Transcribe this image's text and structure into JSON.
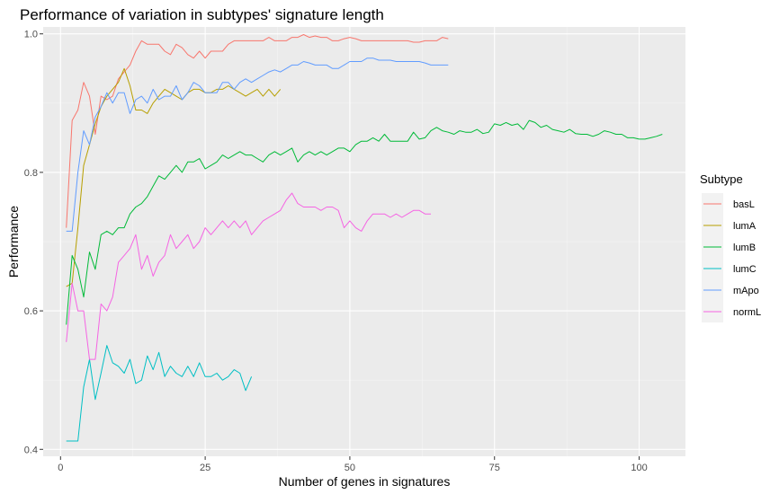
{
  "chart_data": {
    "type": "line",
    "title": "Performance of variation in subtypes' signature length",
    "xlabel": "Number of genes in signatures",
    "ylabel": "Performance",
    "xlim": [
      -3,
      108
    ],
    "ylim": [
      0.39,
      1.01
    ],
    "x_ticks": [
      0,
      25,
      50,
      75,
      100
    ],
    "x_tick_labels": [
      "0",
      "25",
      "50",
      "75",
      "100"
    ],
    "y_ticks": [
      0.4,
      0.6,
      0.8,
      1.0
    ],
    "y_tick_labels": [
      "0.4",
      "0.6",
      "0.8",
      "1.0"
    ],
    "grid": true,
    "legend": {
      "title": "Subtype",
      "position": "right"
    },
    "series": [
      {
        "name": "basL",
        "color": "#F8766D",
        "x": [
          1,
          2,
          3,
          4,
          5,
          6,
          7,
          8,
          9,
          10,
          11,
          12,
          13,
          14,
          15,
          16,
          17,
          18,
          19,
          20,
          21,
          22,
          23,
          24,
          25,
          26,
          27,
          28,
          29,
          30,
          31,
          32,
          33,
          34,
          35,
          36,
          37,
          38,
          39,
          40,
          41,
          42,
          43,
          44,
          45,
          46,
          47,
          48,
          49,
          50,
          51,
          52,
          53,
          54,
          55,
          56,
          57,
          58,
          59,
          60,
          61,
          62,
          63,
          64,
          65,
          66,
          67
        ],
        "y": [
          0.72,
          0.875,
          0.89,
          0.93,
          0.91,
          0.855,
          0.91,
          0.905,
          0.91,
          0.935,
          0.945,
          0.955,
          0.975,
          0.99,
          0.985,
          0.985,
          0.985,
          0.975,
          0.97,
          0.985,
          0.98,
          0.97,
          0.965,
          0.975,
          0.965,
          0.975,
          0.975,
          0.975,
          0.985,
          0.99,
          0.99,
          0.99,
          0.99,
          0.99,
          0.99,
          0.995,
          0.99,
          0.99,
          0.99,
          0.995,
          0.995,
          0.999,
          0.995,
          0.997,
          0.995,
          0.995,
          0.99,
          0.99,
          0.993,
          0.995,
          0.993,
          0.99,
          0.99,
          0.99,
          0.99,
          0.99,
          0.99,
          0.99,
          0.99,
          0.99,
          0.988,
          0.988,
          0.99,
          0.99,
          0.99,
          0.995,
          0.993
        ]
      },
      {
        "name": "lumA",
        "color": "#B79F00",
        "x": [
          1,
          2,
          3,
          4,
          5,
          6,
          7,
          8,
          9,
          10,
          11,
          12,
          13,
          14,
          15,
          16,
          17,
          18,
          19,
          20,
          21,
          22,
          23,
          24,
          25,
          26,
          27,
          28,
          29,
          30,
          31,
          32,
          33,
          34,
          35,
          36,
          37,
          38
        ],
        "y": [
          0.635,
          0.64,
          0.72,
          0.81,
          0.84,
          0.87,
          0.895,
          0.91,
          0.92,
          0.93,
          0.95,
          0.925,
          0.89,
          0.89,
          0.885,
          0.9,
          0.91,
          0.92,
          0.915,
          0.91,
          0.905,
          0.915,
          0.92,
          0.92,
          0.915,
          0.915,
          0.92,
          0.92,
          0.925,
          0.92,
          0.915,
          0.91,
          0.915,
          0.92,
          0.91,
          0.92,
          0.91,
          0.92
        ]
      },
      {
        "name": "lumB",
        "color": "#00BA38",
        "x": [
          1,
          2,
          3,
          4,
          5,
          6,
          7,
          8,
          9,
          10,
          11,
          12,
          13,
          14,
          15,
          16,
          17,
          18,
          19,
          20,
          21,
          22,
          23,
          24,
          25,
          26,
          27,
          28,
          29,
          30,
          31,
          32,
          33,
          34,
          35,
          36,
          37,
          38,
          39,
          40,
          41,
          42,
          43,
          44,
          45,
          46,
          47,
          48,
          49,
          50,
          51,
          52,
          53,
          54,
          55,
          56,
          57,
          58,
          59,
          60,
          61,
          62,
          63,
          64,
          65,
          66,
          67,
          68,
          69,
          70,
          71,
          72,
          73,
          74,
          75,
          76,
          77,
          78,
          79,
          80,
          81,
          82,
          83,
          84,
          85,
          86,
          87,
          88,
          89,
          90,
          91,
          92,
          93,
          94,
          95,
          96,
          97,
          98,
          99,
          100,
          101,
          102,
          103,
          104
        ],
        "y": [
          0.58,
          0.68,
          0.66,
          0.62,
          0.685,
          0.66,
          0.71,
          0.715,
          0.71,
          0.72,
          0.72,
          0.74,
          0.75,
          0.755,
          0.765,
          0.78,
          0.795,
          0.79,
          0.8,
          0.81,
          0.8,
          0.815,
          0.815,
          0.82,
          0.805,
          0.81,
          0.815,
          0.825,
          0.82,
          0.825,
          0.83,
          0.825,
          0.825,
          0.82,
          0.815,
          0.825,
          0.83,
          0.825,
          0.83,
          0.835,
          0.815,
          0.825,
          0.83,
          0.825,
          0.83,
          0.825,
          0.83,
          0.835,
          0.835,
          0.83,
          0.84,
          0.845,
          0.845,
          0.85,
          0.845,
          0.855,
          0.845,
          0.845,
          0.845,
          0.845,
          0.858,
          0.848,
          0.85,
          0.86,
          0.865,
          0.86,
          0.858,
          0.855,
          0.86,
          0.858,
          0.858,
          0.862,
          0.856,
          0.858,
          0.87,
          0.868,
          0.872,
          0.868,
          0.87,
          0.862,
          0.875,
          0.872,
          0.865,
          0.868,
          0.862,
          0.86,
          0.858,
          0.862,
          0.856,
          0.855,
          0.855,
          0.852,
          0.855,
          0.86,
          0.858,
          0.855,
          0.855,
          0.85,
          0.85,
          0.848,
          0.848,
          0.85,
          0.852,
          0.855
        ]
      },
      {
        "name": "lumC",
        "color": "#00BFC4",
        "x": [
          1,
          2,
          3,
          4,
          5,
          6,
          7,
          8,
          9,
          10,
          11,
          12,
          13,
          14,
          15,
          16,
          17,
          18,
          19,
          20,
          21,
          22,
          23,
          24,
          25,
          26,
          27,
          28,
          29,
          30,
          31,
          32,
          33
        ],
        "y": [
          0.412,
          0.412,
          0.412,
          0.49,
          0.53,
          0.472,
          0.51,
          0.55,
          0.525,
          0.52,
          0.51,
          0.53,
          0.495,
          0.5,
          0.535,
          0.515,
          0.54,
          0.505,
          0.52,
          0.51,
          0.505,
          0.52,
          0.505,
          0.525,
          0.505,
          0.505,
          0.51,
          0.5,
          0.505,
          0.515,
          0.51,
          0.485,
          0.505
        ]
      },
      {
        "name": "mApo",
        "color": "#619CFF",
        "x": [
          1,
          2,
          3,
          4,
          5,
          6,
          7,
          8,
          9,
          10,
          11,
          12,
          13,
          14,
          15,
          16,
          17,
          18,
          19,
          20,
          21,
          22,
          23,
          24,
          25,
          26,
          27,
          28,
          29,
          30,
          31,
          32,
          33,
          34,
          35,
          36,
          37,
          38,
          39,
          40,
          41,
          42,
          43,
          44,
          45,
          46,
          47,
          48,
          49,
          50,
          51,
          52,
          53,
          54,
          55,
          56,
          57,
          58,
          59,
          60,
          61,
          62,
          63,
          64,
          65,
          66,
          67
        ],
        "y": [
          0.715,
          0.715,
          0.8,
          0.86,
          0.84,
          0.88,
          0.895,
          0.915,
          0.9,
          0.915,
          0.915,
          0.885,
          0.905,
          0.91,
          0.9,
          0.92,
          0.905,
          0.91,
          0.91,
          0.925,
          0.905,
          0.915,
          0.93,
          0.925,
          0.915,
          0.915,
          0.915,
          0.93,
          0.93,
          0.92,
          0.93,
          0.935,
          0.93,
          0.935,
          0.94,
          0.945,
          0.948,
          0.945,
          0.95,
          0.955,
          0.955,
          0.96,
          0.958,
          0.955,
          0.955,
          0.955,
          0.95,
          0.95,
          0.955,
          0.96,
          0.96,
          0.96,
          0.965,
          0.965,
          0.962,
          0.962,
          0.962,
          0.96,
          0.96,
          0.96,
          0.96,
          0.96,
          0.958,
          0.955,
          0.955,
          0.955,
          0.955
        ]
      },
      {
        "name": "normL",
        "color": "#F564E3",
        "x": [
          1,
          2,
          3,
          4,
          5,
          6,
          7,
          8,
          9,
          10,
          11,
          12,
          13,
          14,
          15,
          16,
          17,
          18,
          19,
          20,
          21,
          22,
          23,
          24,
          25,
          26,
          27,
          28,
          29,
          30,
          31,
          32,
          33,
          34,
          35,
          36,
          37,
          38,
          39,
          40,
          41,
          42,
          43,
          44,
          45,
          46,
          47,
          48,
          49,
          50,
          51,
          52,
          53,
          54,
          55,
          56,
          57,
          58,
          59,
          60,
          61,
          62,
          63,
          64
        ],
        "y": [
          0.555,
          0.64,
          0.6,
          0.6,
          0.53,
          0.53,
          0.61,
          0.6,
          0.62,
          0.67,
          0.68,
          0.69,
          0.71,
          0.66,
          0.68,
          0.65,
          0.67,
          0.68,
          0.71,
          0.69,
          0.7,
          0.71,
          0.69,
          0.7,
          0.72,
          0.71,
          0.72,
          0.73,
          0.72,
          0.73,
          0.72,
          0.73,
          0.71,
          0.72,
          0.73,
          0.735,
          0.74,
          0.745,
          0.76,
          0.77,
          0.755,
          0.75,
          0.75,
          0.75,
          0.745,
          0.75,
          0.75,
          0.745,
          0.72,
          0.73,
          0.72,
          0.715,
          0.73,
          0.74,
          0.74,
          0.74,
          0.735,
          0.74,
          0.735,
          0.74,
          0.745,
          0.745,
          0.74,
          0.74
        ]
      }
    ]
  }
}
